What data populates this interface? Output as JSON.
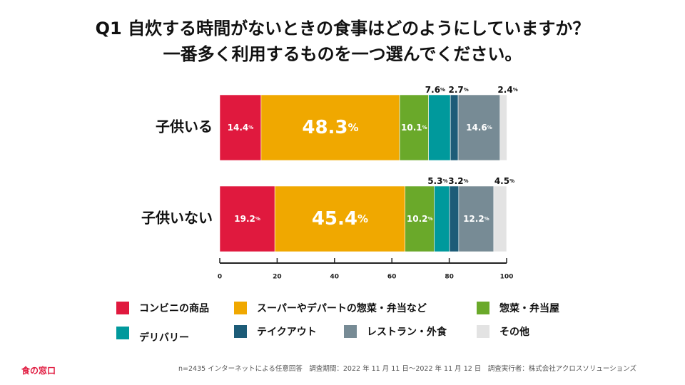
{
  "title_line1": "Q1 自炊する時間がないときの食事はどのようにしていますか？",
  "title_line2": "一番多く利用するものを一つ選んでください。",
  "chart_data": {
    "type": "bar",
    "orientation": "horizontal",
    "stacked": true,
    "categories": [
      "子供いる",
      "子供いない"
    ],
    "series": [
      {
        "name": "コンビニの商品",
        "color": "#e0193e",
        "values": [
          14.4,
          19.2
        ]
      },
      {
        "name": "スーパーやデパートの惣菜・弁当など",
        "color": "#f0a800",
        "values": [
          48.3,
          45.4
        ]
      },
      {
        "name": "惣菜・弁当屋",
        "color": "#6aa92a",
        "values": [
          10.1,
          10.2
        ]
      },
      {
        "name": "デリバリー",
        "color": "#00999c",
        "values": [
          7.6,
          5.3
        ]
      },
      {
        "name": "テイクアウト",
        "color": "#1d5c78",
        "values": [
          2.7,
          3.2
        ]
      },
      {
        "name": "レストラン・外食",
        "color": "#778b95",
        "values": [
          14.6,
          12.2
        ]
      },
      {
        "name": "その他",
        "color": "#e3e3e3",
        "values": [
          2.4,
          4.5
        ]
      }
    ],
    "value_suffix": "%",
    "xlim": [
      0,
      100
    ],
    "xticks": [
      0,
      20,
      40,
      60,
      80,
      100
    ],
    "legend_position": "bottom"
  },
  "legend": {
    "items": [
      {
        "label": "コンビニの商品",
        "color": "#e0193e"
      },
      {
        "label": "スーパーやデパートの惣菜・弁当など",
        "color": "#f0a800"
      },
      {
        "label": "惣菜・弁当屋",
        "color": "#6aa92a"
      },
      {
        "label": "デリバリー",
        "color": "#00999c"
      },
      {
        "label": "テイクアウト",
        "color": "#1d5c78"
      },
      {
        "label": "レストラン・外食",
        "color": "#778b95"
      },
      {
        "label": "その他",
        "color": "#e3e3e3"
      }
    ]
  },
  "brand": "食の窓口",
  "footnote": "n=2435 インターネットによる任意回答　調査期間：2022 年 11 月 11 日〜2022 年 11 月 12 日　調査実行者：株式会社アクロスソリューションズ"
}
